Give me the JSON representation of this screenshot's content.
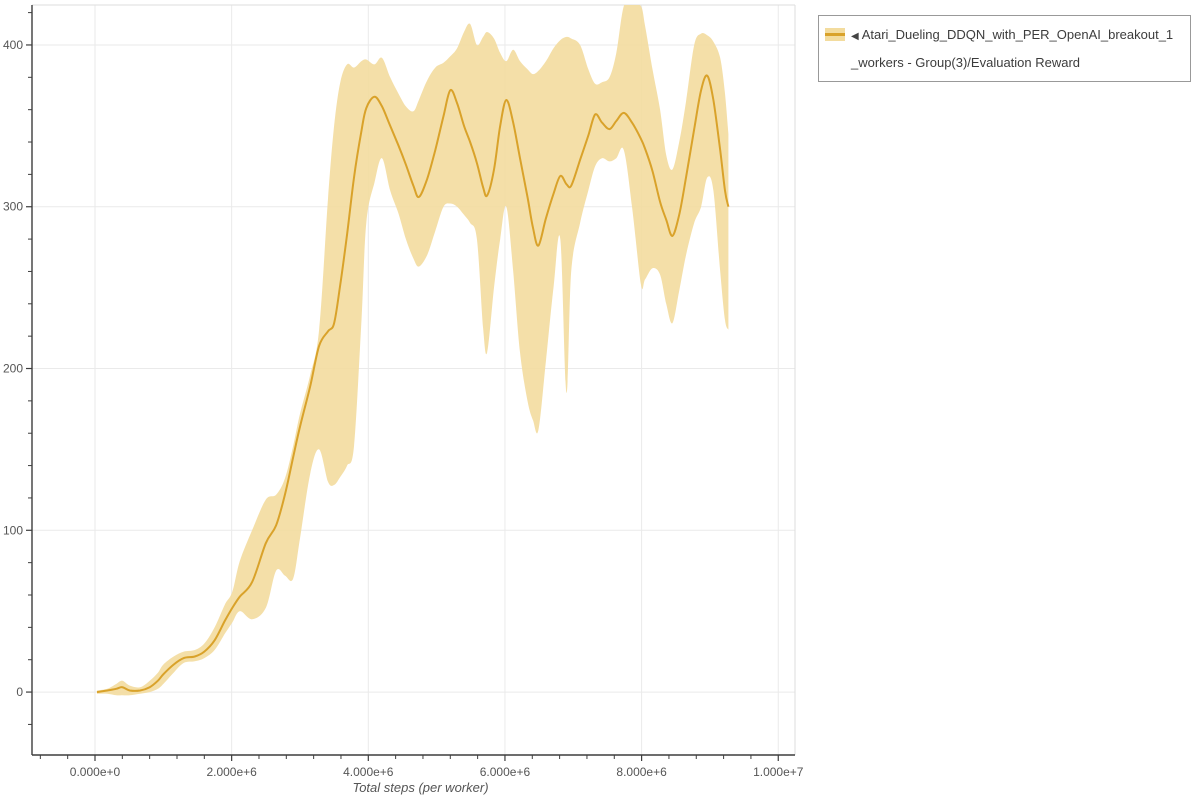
{
  "legend": {
    "arrow": "◀",
    "label": "Atari_Dueling_DDQN_with_PER_OpenAI_breakout_1_workers - Group(3)/Evaluation Reward"
  },
  "colors": {
    "line": "#D9A22A",
    "band": "#F3DC9E",
    "grid": "#EAEAEA",
    "plot_border": "#DEDEDE",
    "spine": "#3D3D3D",
    "tick_label": "#555555",
    "axis_title": "#555555",
    "legend_border": "#999999",
    "legend_text": "#3C3C3C",
    "background": "#FFFFFF"
  },
  "chart_data": {
    "type": "line",
    "title": "",
    "xlabel": "Total steps (per worker)",
    "ylabel": "",
    "grid": true,
    "legend_position": "top-right",
    "x_unit": "millions of steps",
    "xlim_millions": [
      -0.922,
      10.245
    ],
    "ylim": [
      -38.9,
      424.7
    ],
    "x_ticks": [
      {
        "v": 0,
        "label": "0.000e+0"
      },
      {
        "v": 2,
        "label": "2.000e+6"
      },
      {
        "v": 4,
        "label": "4.000e+6"
      },
      {
        "v": 6,
        "label": "6.000e+6"
      },
      {
        "v": 8,
        "label": "8.000e+6"
      },
      {
        "v": 10,
        "label": "1.000e+7"
      }
    ],
    "y_ticks": [
      {
        "v": 0,
        "label": "0"
      },
      {
        "v": 100,
        "label": "100"
      },
      {
        "v": 200,
        "label": "200"
      },
      {
        "v": 300,
        "label": "300"
      },
      {
        "v": 400,
        "label": "400"
      }
    ],
    "x_minor_step_millions": 0.4,
    "y_minor_step": 20,
    "series": [
      {
        "name": "Atari_Dueling_DDQN_with_PER_OpenAI_breakout_1_workers - Group(3)/Evaluation Reward",
        "x_millions": [
          0.03,
          0.18,
          0.31,
          0.4,
          0.51,
          0.66,
          0.8,
          0.92,
          1.0,
          1.15,
          1.3,
          1.46,
          1.6,
          1.75,
          1.9,
          2.01,
          2.12,
          2.3,
          2.5,
          2.65,
          2.78,
          2.9,
          3.0,
          3.15,
          3.28,
          3.41,
          3.5,
          3.59,
          3.69,
          3.79,
          3.9,
          3.97,
          4.09,
          4.2,
          4.32,
          4.44,
          4.55,
          4.66,
          4.74,
          4.86,
          4.98,
          5.1,
          5.2,
          5.3,
          5.4,
          5.49,
          5.59,
          5.68,
          5.74,
          5.84,
          5.93,
          6.02,
          6.12,
          6.22,
          6.33,
          6.41,
          6.49,
          6.6,
          6.71,
          6.81,
          6.9,
          6.97,
          7.1,
          7.22,
          7.32,
          7.42,
          7.53,
          7.63,
          7.74,
          7.86,
          7.99,
          8.05,
          8.16,
          8.27,
          8.36,
          8.45,
          8.55,
          8.65,
          8.77,
          8.87,
          8.96,
          9.05,
          9.15,
          9.22,
          9.27
        ],
        "mean": [
          0,
          1,
          2,
          3,
          1,
          1,
          3,
          7,
          11,
          17,
          21,
          22,
          25,
          32,
          44,
          52,
          59,
          68,
          92,
          103,
          122,
          145,
          164,
          189,
          214,
          223,
          228,
          252,
          283,
          318,
          347,
          361,
          368,
          362,
          350,
          338,
          326,
          313,
          306,
          317,
          335,
          356,
          372,
          364,
          350,
          340,
          327,
          312,
          307,
          323,
          350,
          366,
          352,
          330,
          306,
          287,
          276,
          293,
          308,
          319,
          314,
          313,
          329,
          344,
          357,
          352,
          348,
          353,
          358,
          352,
          342,
          336,
          322,
          303,
          292,
          282,
          295,
          318,
          348,
          372,
          381,
          366,
          335,
          310,
          300
        ],
        "band_low": [
          -1,
          -1,
          -2,
          -2,
          -2,
          -1,
          0,
          2,
          5,
          12,
          18,
          19,
          21,
          26,
          36,
          43,
          50,
          45,
          52,
          75,
          72,
          70,
          95,
          135,
          150,
          130,
          128,
          133,
          140,
          152,
          230,
          290,
          315,
          330,
          310,
          296,
          280,
          268,
          263,
          270,
          285,
          300,
          302,
          300,
          295,
          290,
          280,
          225,
          210,
          250,
          280,
          300,
          260,
          210,
          180,
          168,
          162,
          205,
          250,
          280,
          185,
          260,
          290,
          310,
          325,
          330,
          328,
          330,
          335,
          300,
          252,
          255,
          262,
          258,
          240,
          228,
          248,
          270,
          290,
          300,
          318,
          310,
          260,
          230,
          224
        ],
        "band_high": [
          1,
          2,
          5,
          7,
          4,
          3,
          7,
          12,
          17,
          22,
          25,
          26,
          30,
          40,
          54,
          62,
          81,
          100,
          119,
          122,
          132,
          152,
          172,
          196,
          224,
          305,
          350,
          377,
          388,
          386,
          390,
          391,
          388,
          392,
          380,
          370,
          362,
          359,
          366,
          378,
          386,
          389,
          393,
          398,
          408,
          413,
          400,
          405,
          408,
          404,
          395,
          390,
          397,
          390,
          385,
          382,
          384,
          390,
          398,
          403,
          405,
          404,
          400,
          385,
          376,
          377,
          380,
          395,
          424,
          425,
          424,
          412,
          385,
          360,
          332,
          323,
          340,
          365,
          400,
          407,
          406,
          402,
          392,
          370,
          345
        ]
      }
    ]
  }
}
